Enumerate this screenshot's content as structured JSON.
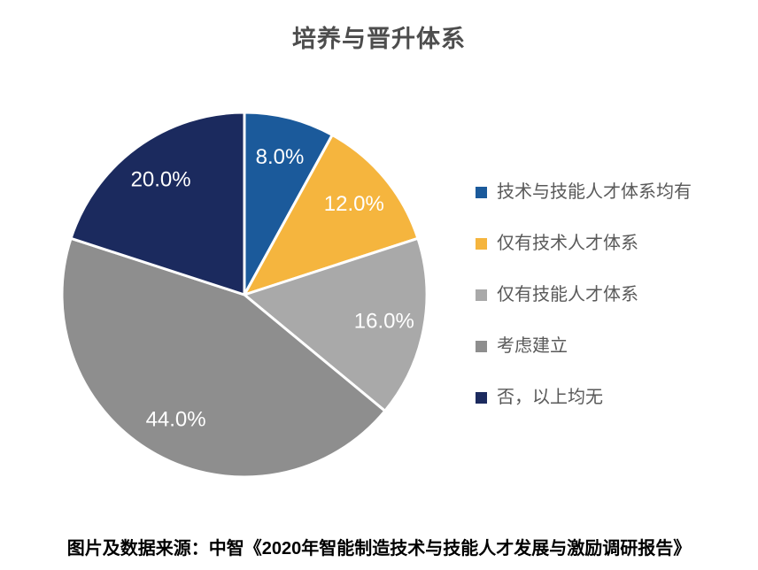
{
  "chart_data": {
    "type": "pie",
    "title": "培养与晋升体系",
    "direction": "clockwise",
    "start_angle_deg": 0,
    "legend_position": "right",
    "data_label_format": "{value}%",
    "data_label_color": "#ffffff",
    "separator_color": "#ffffff",
    "slices": [
      {
        "label": "技术与技能人才体系均有",
        "value": 8.0,
        "color": "#1B5A9B"
      },
      {
        "label": "仅有技术人才体系",
        "value": 12.0,
        "color": "#F5B53E"
      },
      {
        "label": "仅有技能人才体系",
        "value": 16.0,
        "color": "#A9A9A9"
      },
      {
        "label": "考虑建立",
        "value": 44.0,
        "color": "#8E8E8E"
      },
      {
        "label": "否，以上均无",
        "value": 20.0,
        "color": "#1B2A5E"
      }
    ]
  },
  "source_note": "图片及数据来源：中智《2020年智能制造技术与技能人才发展与激励调研报告》"
}
